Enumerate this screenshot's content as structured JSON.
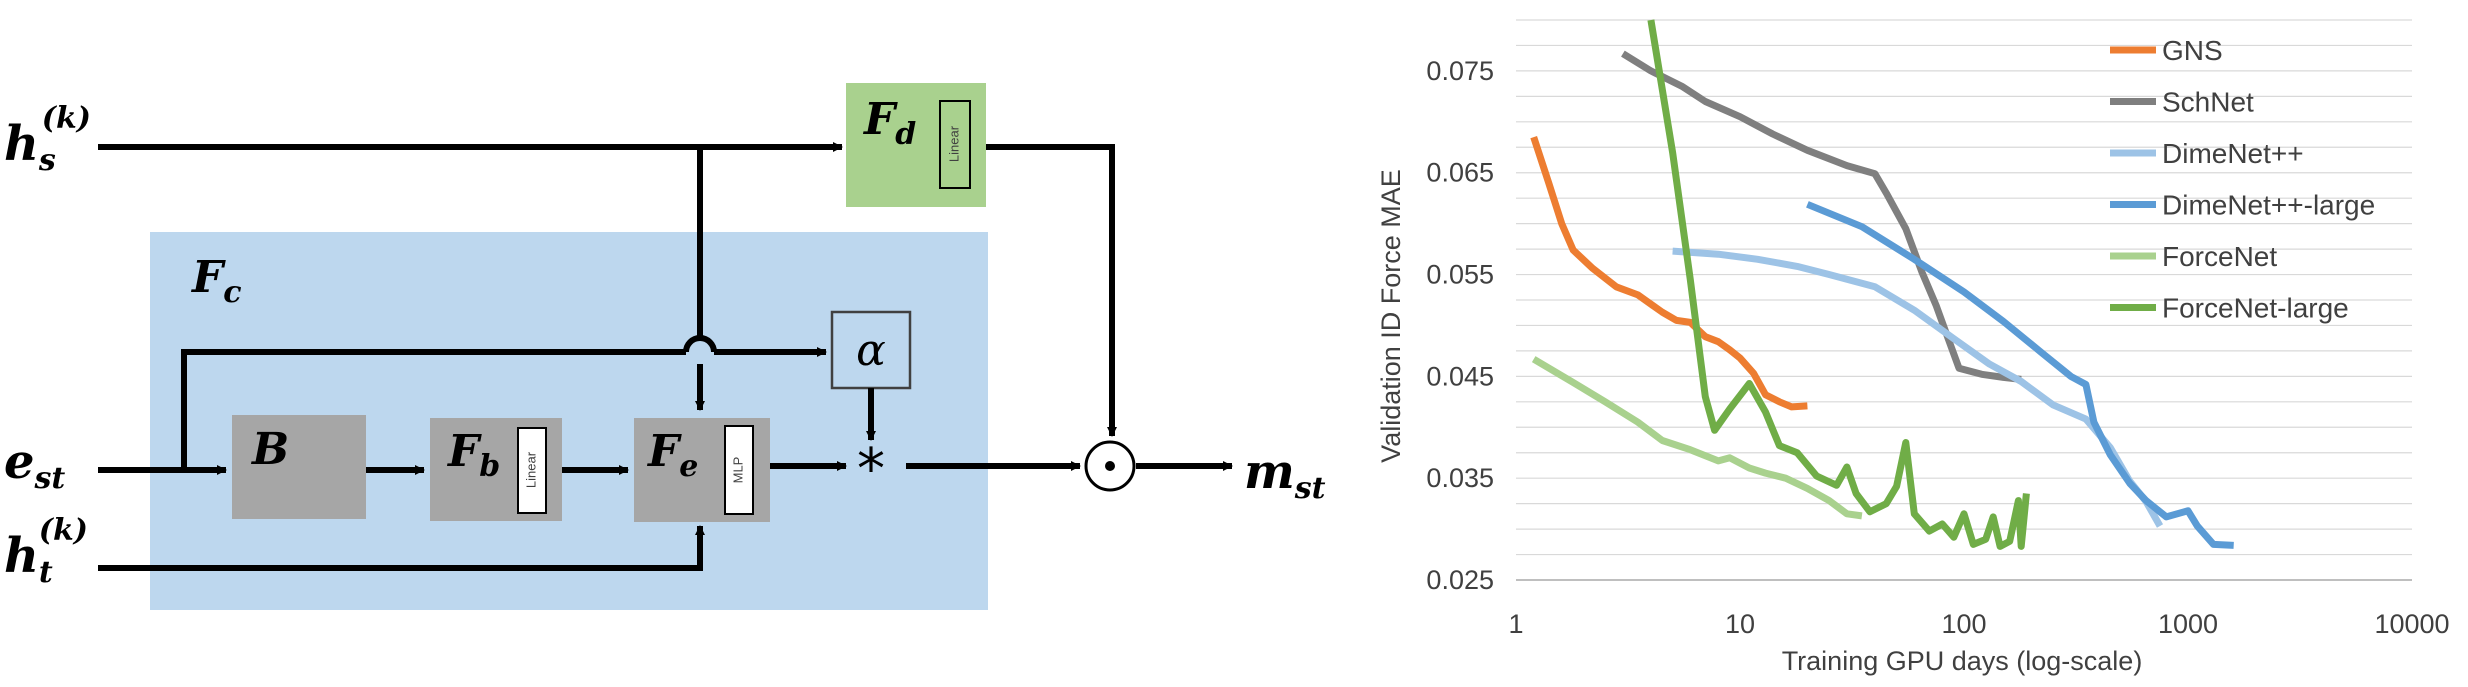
{
  "diagram": {
    "inputs": {
      "hs": {
        "main": "h",
        "sub": "s",
        "sup": "(k)"
      },
      "est": {
        "main": "e",
        "sub": "st"
      },
      "ht": {
        "main": "h",
        "sub": "t",
        "sup": "(k)"
      }
    },
    "output": {
      "main": "m",
      "sub": "st"
    },
    "container": {
      "main": "F",
      "sub": "c"
    },
    "blocks": {
      "B": {
        "main": "B"
      },
      "Fb": {
        "main": "F",
        "sub": "b",
        "tag": "Linear"
      },
      "Fe": {
        "main": "F",
        "sub": "e",
        "tag": "MLP"
      },
      "Fd": {
        "main": "F",
        "sub": "d",
        "tag": "Linear"
      },
      "alpha": {
        "main": "α"
      }
    },
    "ops": {
      "multiply": "*",
      "hadamard": "⊙"
    },
    "colors": {
      "container": "#bdd7ee",
      "gray_block": "#a6a6a6",
      "green_block": "#a9d18e"
    }
  },
  "chart_data": {
    "type": "line",
    "xlabel": "Training GPU days (log-scale)",
    "ylabel": "Validation ID Force MAE",
    "x_scale": "log",
    "xlim": [
      1,
      10000
    ],
    "ylim": [
      0.025,
      0.08
    ],
    "x_ticks": [
      "1",
      "10",
      "100",
      "1000",
      "10000"
    ],
    "y_ticks": [
      "0.025",
      "0.035",
      "0.045",
      "0.055",
      "0.065",
      "0.075"
    ],
    "grid": true,
    "legend_position": "top-right",
    "series": [
      {
        "name": "GNS",
        "color": "#ed7d31",
        "points": [
          [
            1.2,
            0.0685
          ],
          [
            1.4,
            0.064
          ],
          [
            1.6,
            0.06
          ],
          [
            1.8,
            0.0574
          ],
          [
            2.2,
            0.0556
          ],
          [
            2.8,
            0.0538
          ],
          [
            3.5,
            0.053
          ],
          [
            4.5,
            0.0513
          ],
          [
            5.2,
            0.0505
          ],
          [
            6,
            0.0503
          ],
          [
            7,
            0.0489
          ],
          [
            8,
            0.0484
          ],
          [
            9,
            0.0476
          ],
          [
            10,
            0.0468
          ],
          [
            11.5,
            0.0453
          ],
          [
            13,
            0.0432
          ],
          [
            15,
            0.0425
          ],
          [
            17,
            0.042
          ],
          [
            20,
            0.0421
          ]
        ]
      },
      {
        "name": "SchNet",
        "color": "#7f7f7f",
        "points": [
          [
            3,
            0.0767
          ],
          [
            4,
            0.075
          ],
          [
            5.5,
            0.0735
          ],
          [
            7,
            0.072
          ],
          [
            10,
            0.0705
          ],
          [
            14,
            0.0688
          ],
          [
            20,
            0.0672
          ],
          [
            30,
            0.0657
          ],
          [
            40,
            0.0649
          ],
          [
            45,
            0.063
          ],
          [
            55,
            0.0595
          ],
          [
            65,
            0.0552
          ],
          [
            75,
            0.052
          ],
          [
            85,
            0.0487
          ],
          [
            95,
            0.0458
          ],
          [
            120,
            0.0452
          ],
          [
            150,
            0.0449
          ],
          [
            180,
            0.0447
          ]
        ]
      },
      {
        "name": "DimeNet++",
        "color": "#9dc3e6",
        "points": [
          [
            5,
            0.0573
          ],
          [
            8,
            0.057
          ],
          [
            12,
            0.0565
          ],
          [
            18,
            0.0558
          ],
          [
            25,
            0.055
          ],
          [
            40,
            0.0538
          ],
          [
            60,
            0.0515
          ],
          [
            90,
            0.0487
          ],
          [
            130,
            0.0462
          ],
          [
            180,
            0.0445
          ],
          [
            250,
            0.0422
          ],
          [
            350,
            0.0408
          ],
          [
            450,
            0.038
          ],
          [
            550,
            0.0347
          ],
          [
            650,
            0.0327
          ],
          [
            750,
            0.0303
          ]
        ]
      },
      {
        "name": "DimeNet++-large",
        "color": "#5b9bd5",
        "points": [
          [
            20,
            0.0619
          ],
          [
            35,
            0.0597
          ],
          [
            60,
            0.0565
          ],
          [
            100,
            0.0533
          ],
          [
            150,
            0.0504
          ],
          [
            220,
            0.0474
          ],
          [
            300,
            0.045
          ],
          [
            350,
            0.0442
          ],
          [
            380,
            0.0405
          ],
          [
            450,
            0.0373
          ],
          [
            550,
            0.0345
          ],
          [
            650,
            0.0328
          ],
          [
            800,
            0.0312
          ],
          [
            1000,
            0.0318
          ],
          [
            1100,
            0.0303
          ],
          [
            1300,
            0.0285
          ],
          [
            1600,
            0.0284
          ]
        ]
      },
      {
        "name": "ForceNet",
        "color": "#a9d18e",
        "points": [
          [
            1.2,
            0.0467
          ],
          [
            1.8,
            0.0444
          ],
          [
            2.5,
            0.0425
          ],
          [
            3.5,
            0.0405
          ],
          [
            4.5,
            0.0387
          ],
          [
            6,
            0.0378
          ],
          [
            8,
            0.0367
          ],
          [
            9,
            0.037
          ],
          [
            11,
            0.036
          ],
          [
            13,
            0.0355
          ],
          [
            16,
            0.035
          ],
          [
            20,
            0.034
          ],
          [
            25,
            0.0328
          ],
          [
            30,
            0.0315
          ],
          [
            35,
            0.0313
          ]
        ]
      },
      {
        "name": "ForceNet-large",
        "color": "#70ad47",
        "points": [
          [
            4,
            0.0802
          ],
          [
            5,
            0.067
          ],
          [
            6,
            0.0545
          ],
          [
            7,
            0.043
          ],
          [
            7.7,
            0.0397
          ],
          [
            9,
            0.0418
          ],
          [
            11,
            0.0443
          ],
          [
            13,
            0.0415
          ],
          [
            15,
            0.0382
          ],
          [
            18,
            0.0375
          ],
          [
            22,
            0.0352
          ],
          [
            27,
            0.0343
          ],
          [
            30,
            0.0361
          ],
          [
            33,
            0.0335
          ],
          [
            38,
            0.0317
          ],
          [
            45,
            0.0325
          ],
          [
            50,
            0.0342
          ],
          [
            55,
            0.0385
          ],
          [
            60,
            0.0315
          ],
          [
            70,
            0.0298
          ],
          [
            80,
            0.0305
          ],
          [
            90,
            0.0292
          ],
          [
            100,
            0.0315
          ],
          [
            110,
            0.0285
          ],
          [
            125,
            0.029
          ],
          [
            135,
            0.0312
          ],
          [
            145,
            0.0283
          ],
          [
            160,
            0.0288
          ],
          [
            175,
            0.0328
          ],
          [
            180,
            0.0283
          ],
          [
            190,
            0.0335
          ]
        ]
      }
    ]
  }
}
